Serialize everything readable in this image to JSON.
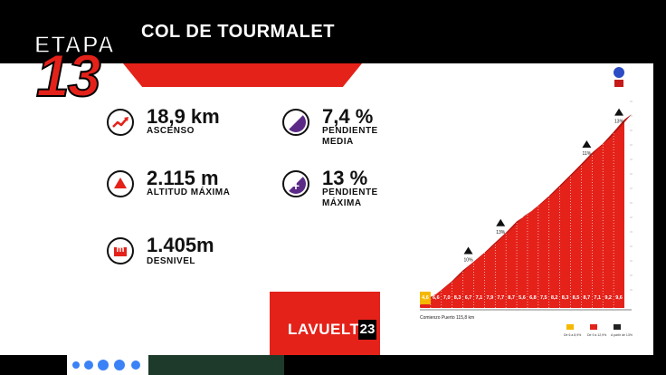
{
  "stage": {
    "etapa_label": "ETAPA",
    "etapa_number": "13"
  },
  "title": "COL DE TOURMALET",
  "stats": {
    "ascenso": {
      "value": "18,9 km",
      "label": "ASCENSO"
    },
    "altitud": {
      "value": "2.115 m",
      "label": "ALTITUD MÁXIMA"
    },
    "desnivel": {
      "value": "1.405m",
      "label": "DESNIVEL"
    },
    "pendiente_media": {
      "value": "7,4 %",
      "label_line1": "PENDIENTE",
      "label_line2": "MEDIA"
    },
    "pendiente_maxima": {
      "value": "13 %",
      "label_line1": "PENDIENTE",
      "label_line2": "MÁXIMA",
      "icon_glyph": "+"
    },
    "desnivel_icon_glyph": "m"
  },
  "logo": {
    "text": "LAVUELTA",
    "number": "23"
  },
  "colors": {
    "red": "#e4221a",
    "purple": "#5b2a86",
    "yellow": "#f5b800",
    "dark_green": "#1d3a2a",
    "black": "#000000"
  },
  "icons": [
    "trend-up-icon",
    "triangle-up-icon",
    "meter-icon",
    "slope-icon",
    "plus-icon"
  ],
  "profile": {
    "segment_gradients": [
      "4,6",
      "6,6",
      "7,0",
      "8,3",
      "6,7",
      "7,1",
      "7,9",
      "7,7",
      "8,7",
      "5,6",
      "6,8",
      "7,5",
      "8,2",
      "8,3",
      "8,5",
      "8,7",
      "7,1",
      "9,2",
      "9,6"
    ],
    "markers": [
      "10%",
      "13%",
      "11%",
      "13%"
    ],
    "start_label": "Comienzo Puerto 115,8 km",
    "legend": [
      "De 6 a 8,9%",
      "De 9 a 12,9%",
      "A partir de 13%"
    ],
    "summit_elevation_label": "2.115"
  }
}
